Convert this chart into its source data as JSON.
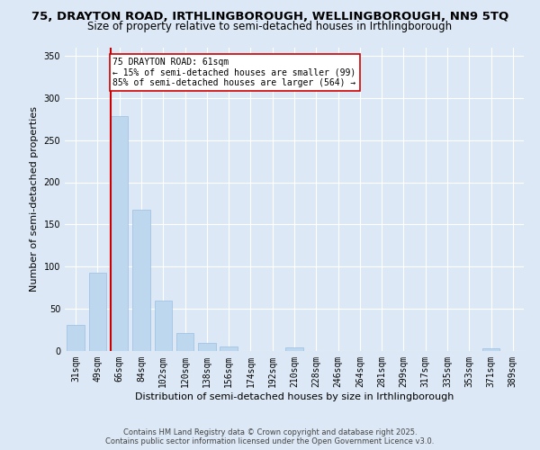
{
  "title_line1": "75, DRAYTON ROAD, IRTHLINGBOROUGH, WELLINGBOROUGH, NN9 5TQ",
  "title_line2": "Size of property relative to semi-detached houses in Irthlingborough",
  "xlabel": "Distribution of semi-detached houses by size in Irthlingborough",
  "ylabel": "Number of semi-detached properties",
  "categories": [
    "31sqm",
    "49sqm",
    "66sqm",
    "84sqm",
    "102sqm",
    "120sqm",
    "138sqm",
    "156sqm",
    "174sqm",
    "192sqm",
    "210sqm",
    "228sqm",
    "246sqm",
    "264sqm",
    "281sqm",
    "299sqm",
    "317sqm",
    "335sqm",
    "353sqm",
    "371sqm",
    "389sqm"
  ],
  "values": [
    31,
    93,
    278,
    168,
    60,
    21,
    10,
    5,
    0,
    0,
    4,
    0,
    0,
    0,
    0,
    0,
    0,
    0,
    0,
    3,
    0
  ],
  "bar_color": "#bdd7ee",
  "bar_edge_color": "#9bbfe0",
  "highlight_index": 2,
  "highlight_line_color": "#cc0000",
  "annotation_text": "75 DRAYTON ROAD: 61sqm\n← 15% of semi-detached houses are smaller (99)\n85% of semi-detached houses are larger (564) →",
  "annotation_box_color": "#ffffff",
  "annotation_box_edge_color": "#cc0000",
  "ylim": [
    0,
    360
  ],
  "yticks": [
    0,
    50,
    100,
    150,
    200,
    250,
    300,
    350
  ],
  "background_color": "#dce8f5",
  "grid_color": "#ffffff",
  "footer_line1": "Contains HM Land Registry data © Crown copyright and database right 2025.",
  "footer_line2": "Contains public sector information licensed under the Open Government Licence v3.0.",
  "title_fontsize": 9.5,
  "subtitle_fontsize": 8.5,
  "axis_label_fontsize": 8,
  "tick_fontsize": 7,
  "annotation_fontsize": 7,
  "footer_fontsize": 6
}
